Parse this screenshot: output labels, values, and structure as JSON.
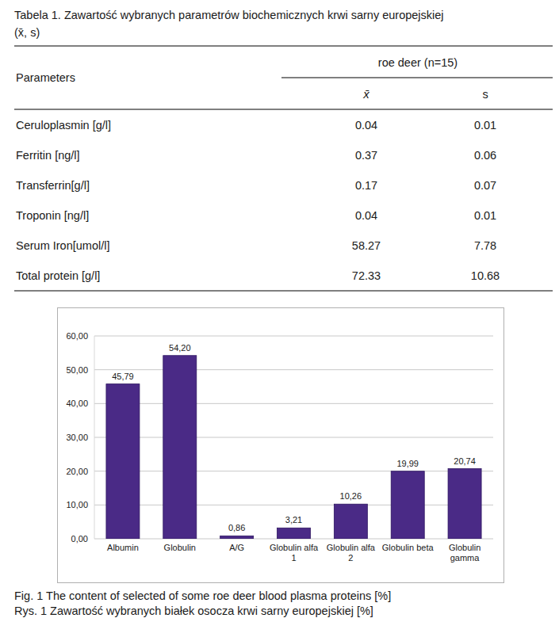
{
  "table": {
    "title": "Tabela 1. Zawartość wybranych parametrów biochemicznych krwi sarny europejskiej",
    "title_stats": "(x̄, s)",
    "header": {
      "parameters": "Parameters",
      "group": "roe deer (n=15)",
      "mean": "x̄",
      "sd": "s"
    },
    "rows": [
      [
        "Ceruloplasmin [g/l]",
        0.04,
        0.01
      ],
      [
        "Ferritin [ng/l]",
        0.37,
        0.06
      ],
      [
        "Transferrin[g/l]",
        0.17,
        0.07
      ],
      [
        "Troponin [ng/l]",
        0.04,
        0.01
      ],
      [
        "Serum Iron[umol/l]",
        58.27,
        7.78
      ],
      [
        "Total protein [g/l]",
        72.33,
        10.68
      ]
    ]
  },
  "chart_data": {
    "type": "bar",
    "categories": [
      "Albumin",
      "Globulin",
      "A/G",
      "Globulin alfa 1",
      "Globulin alfa 2",
      "Globulin beta",
      "Globulin gamma"
    ],
    "values": [
      45.79,
      54.2,
      0.86,
      3.21,
      10.26,
      19.99,
      20.74
    ],
    "value_labels": [
      "45,79",
      "54,20",
      "0,86",
      "3,21",
      "10,26",
      "19,99",
      "20,74"
    ],
    "data_labels": true,
    "color": "#4a2a86",
    "ylim": [
      0,
      60
    ],
    "yticks": [
      {
        "value": 0,
        "label": "0,00"
      },
      {
        "value": 10,
        "label": "10,00"
      },
      {
        "value": 20,
        "label": "20,00"
      },
      {
        "value": 30,
        "label": "30,00"
      },
      {
        "value": 40,
        "label": "40,00"
      },
      {
        "value": 50,
        "label": "50,00"
      },
      {
        "value": 60,
        "label": "60,00"
      }
    ],
    "grid": true
  },
  "figure_caption": "Fig. 1 The content of selected of some roe deer blood plasma proteins [%]",
  "figure_caption_pl": "Rys. 1 Zawartość wybranych białek osocza krwi sarny europejskiej [%]"
}
